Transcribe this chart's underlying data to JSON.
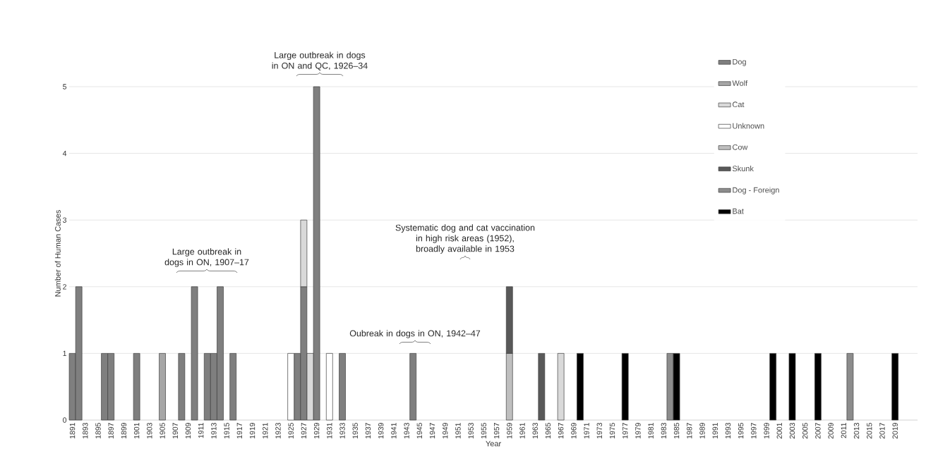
{
  "chart_data": {
    "type": "bar",
    "stacked": true,
    "xlabel": "Year",
    "ylabel": "Number of Human Cases",
    "x": [
      1891,
      1892,
      1896,
      1897,
      1901,
      1905,
      1908,
      1910,
      1912,
      1913,
      1914,
      1916,
      1925,
      1926,
      1927,
      1928,
      1929,
      1931,
      1933,
      1944,
      1959,
      1964,
      1967,
      1970,
      1977,
      1984,
      1985,
      2000,
      2003,
      2007,
      2012,
      2019
    ],
    "xlim": [
      1890.5,
      2022.5
    ],
    "xticks": [
      1891,
      1893,
      1895,
      1897,
      1899,
      1901,
      1903,
      1905,
      1907,
      1909,
      1911,
      1913,
      1915,
      1917,
      1919,
      1921,
      1923,
      1925,
      1927,
      1929,
      1931,
      1933,
      1935,
      1937,
      1939,
      1941,
      1943,
      1945,
      1947,
      1949,
      1951,
      1953,
      1955,
      1957,
      1959,
      1961,
      1963,
      1965,
      1967,
      1969,
      1971,
      1973,
      1975,
      1977,
      1979,
      1981,
      1983,
      1985,
      1987,
      1989,
      1991,
      1993,
      1995,
      1997,
      1999,
      2001,
      2003,
      2005,
      2007,
      2009,
      2011,
      2013,
      2015,
      2017,
      2019
    ],
    "ylim": [
      0,
      5
    ],
    "yticks": [
      0,
      1,
      2,
      3,
      4,
      5
    ],
    "grid": "y",
    "legend": "top right",
    "series": [
      {
        "name": "Dog",
        "color": "#7f7f7f",
        "values": [
          1,
          2,
          1,
          1,
          1,
          null,
          1,
          2,
          1,
          1,
          2,
          1,
          null,
          1,
          2,
          null,
          5,
          null,
          1,
          1,
          null,
          null,
          null,
          null,
          null,
          null,
          null,
          null,
          null,
          null,
          null,
          null
        ]
      },
      {
        "name": "Wolf",
        "color": "#a6a6a6",
        "values": [
          null,
          null,
          null,
          null,
          null,
          1,
          null,
          null,
          null,
          null,
          null,
          null,
          null,
          null,
          null,
          null,
          null,
          null,
          null,
          null,
          null,
          null,
          null,
          null,
          null,
          null,
          null,
          null,
          null,
          null,
          null,
          null
        ]
      },
      {
        "name": "Cat",
        "color": "#d9d9d9",
        "values": [
          null,
          null,
          null,
          null,
          null,
          null,
          null,
          null,
          null,
          null,
          null,
          null,
          null,
          null,
          1,
          1,
          null,
          null,
          null,
          null,
          null,
          null,
          1,
          null,
          null,
          null,
          null,
          null,
          null,
          null,
          null,
          null
        ]
      },
      {
        "name": "Unknown",
        "color": "#ffffff",
        "values": [
          null,
          null,
          null,
          null,
          null,
          null,
          null,
          null,
          null,
          null,
          null,
          null,
          1,
          null,
          null,
          null,
          null,
          1,
          null,
          null,
          null,
          null,
          null,
          null,
          null,
          null,
          null,
          null,
          null,
          null,
          null,
          null
        ]
      },
      {
        "name": "Cow",
        "color": "#bfbfbf",
        "values": [
          null,
          null,
          null,
          null,
          null,
          null,
          null,
          null,
          null,
          null,
          null,
          null,
          null,
          null,
          null,
          null,
          null,
          null,
          null,
          null,
          1,
          null,
          null,
          null,
          null,
          null,
          null,
          null,
          null,
          null,
          null,
          null
        ]
      },
      {
        "name": "Skunk",
        "color": "#595959",
        "values": [
          null,
          null,
          null,
          null,
          null,
          null,
          null,
          null,
          null,
          null,
          null,
          null,
          null,
          null,
          null,
          null,
          null,
          null,
          null,
          null,
          1,
          1,
          null,
          null,
          null,
          null,
          null,
          null,
          null,
          null,
          null,
          null
        ]
      },
      {
        "name": "Dog - Foreign",
        "color": "#8c8c8c",
        "values": [
          null,
          null,
          null,
          null,
          null,
          null,
          null,
          null,
          null,
          null,
          null,
          null,
          null,
          null,
          null,
          null,
          null,
          null,
          null,
          null,
          null,
          null,
          null,
          null,
          null,
          1,
          null,
          null,
          null,
          null,
          1,
          null
        ]
      },
      {
        "name": "Bat",
        "color": "#000000",
        "values": [
          null,
          null,
          null,
          null,
          null,
          null,
          null,
          null,
          null,
          null,
          null,
          null,
          null,
          null,
          null,
          null,
          null,
          null,
          null,
          null,
          null,
          null,
          null,
          1,
          1,
          null,
          1,
          1,
          1,
          1,
          null,
          1
        ]
      }
    ],
    "annotations": [
      "Large outbreak in dogs in ON, 1907–17",
      "Large outbreak in dogs in ON and QC, 1926–34",
      "Oubreak in dogs in ON, 1942–47",
      "Systematic dog and cat vaccination in high risk areas (1952), broadly available in 1953"
    ]
  }
}
